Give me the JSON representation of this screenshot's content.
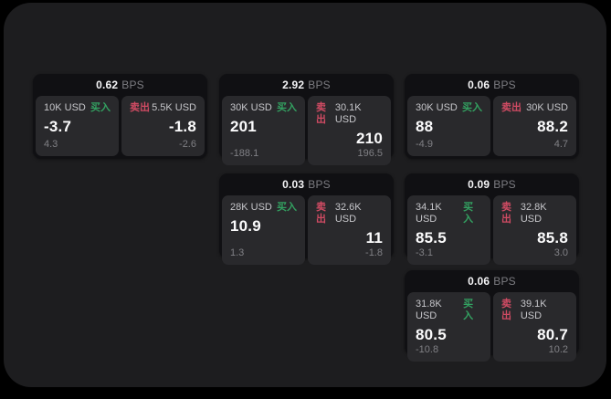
{
  "labels": {
    "bps_unit": "BPS",
    "buy": "买入",
    "sell": "卖出"
  },
  "colors": {
    "background": "#000000",
    "container_bg": "#1d1d1f",
    "card_bg": "#101013",
    "panel_bg": "#29292c",
    "buy_green": "#33a161",
    "sell_red": "#d04b63"
  },
  "cards": [
    {
      "bps": "0.62",
      "buy": {
        "amount": "10K USD",
        "price": "-3.7",
        "delta": "4.3"
      },
      "sell": {
        "amount": "5.5K USD",
        "price": "-1.8",
        "delta": "-2.6"
      }
    },
    {
      "bps": "2.92",
      "buy": {
        "amount": "30K USD",
        "price": "201",
        "delta": "-188.1"
      },
      "sell": {
        "amount": "30.1K USD",
        "price": "210",
        "delta": "196.5"
      }
    },
    {
      "bps": "0.06",
      "buy": {
        "amount": "30K USD",
        "price": "88",
        "delta": "-4.9"
      },
      "sell": {
        "amount": "30K USD",
        "price": "88.2",
        "delta": "4.7"
      }
    },
    {
      "bps": "0.03",
      "buy": {
        "amount": "28K USD",
        "price": "10.9",
        "delta": "1.3"
      },
      "sell": {
        "amount": "32.6K USD",
        "price": "11",
        "delta": "-1.8"
      }
    },
    {
      "bps": "0.09",
      "buy": {
        "amount": "34.1K USD",
        "price": "85.5",
        "delta": "-3.1"
      },
      "sell": {
        "amount": "32.8K USD",
        "price": "85.8",
        "delta": "3.0"
      }
    },
    {
      "bps": "0.06",
      "buy": {
        "amount": "31.8K USD",
        "price": "80.5",
        "delta": "-10.8"
      },
      "sell": {
        "amount": "39.1K USD",
        "price": "80.7",
        "delta": "10.2"
      }
    }
  ]
}
